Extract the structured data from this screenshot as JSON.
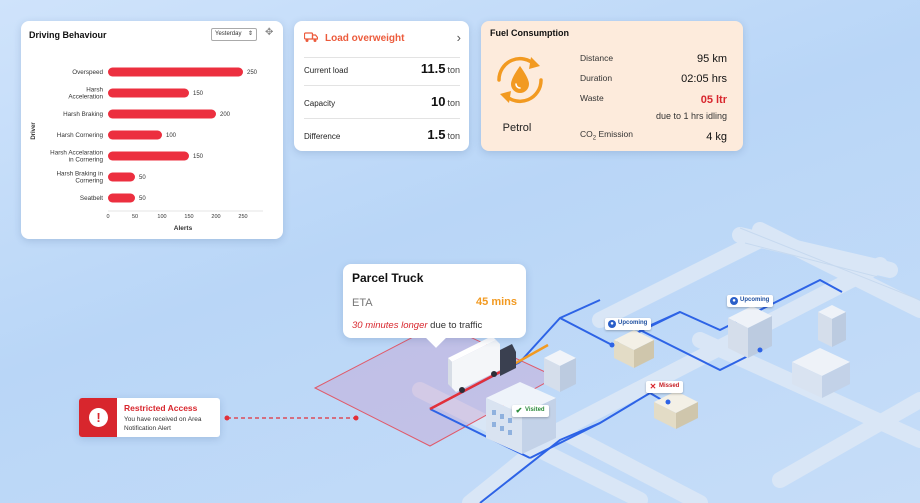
{
  "driving_behaviour": {
    "title": "Driving Behaviour",
    "period": "Yesterday",
    "chart_data": {
      "type": "bar",
      "orientation": "horizontal",
      "title": "Driving Behaviour",
      "xlabel": "Alerts",
      "ylabel": "Driver",
      "categories": [
        "Overspeed",
        "Harsh Acceleration",
        "Harsh Braking",
        "Harsh Cornering",
        "Harsh Accelaration in Cornering",
        "Harsh Braking in Cornering",
        "Seatbelt"
      ],
      "category_lines": [
        [
          "Overspeed"
        ],
        [
          "Harsh",
          "Acceleration"
        ],
        [
          "Harsh Braking"
        ],
        [
          "Harsh Cornering"
        ],
        [
          "Harsh Accelaration",
          "in Cornering"
        ],
        [
          "Harsh Braking in",
          "Cornering"
        ],
        [
          "Seatbelt"
        ]
      ],
      "values": [
        250,
        150,
        200,
        100,
        150,
        50,
        50
      ],
      "xlim": [
        0,
        250
      ],
      "xticks": [
        0,
        50,
        100,
        150,
        200,
        250
      ],
      "bar_color": "#ec2f3f",
      "grid": false
    }
  },
  "load": {
    "title": "Load overweight",
    "accent": "#ec5b3c",
    "rows": [
      {
        "label": "Current load",
        "value": "11.5",
        "unit": "ton"
      },
      {
        "label": "Capacity",
        "value": "10",
        "unit": "ton"
      },
      {
        "label": "Difference",
        "value": "1.5",
        "unit": "ton"
      }
    ]
  },
  "fuel": {
    "title": "Fuel Consumption",
    "fuel_type": "Petrol",
    "distance_label": "Distance",
    "distance_value": "95 km",
    "duration_label": "Duration",
    "duration_value": "02:05 hrs",
    "waste_label": "Waste",
    "waste_value": "05 ltr",
    "waste_note": "due to 1 hrs idling",
    "co2_label_pre": "CO",
    "co2_label_sub": "2",
    "co2_label_post": " Emission",
    "co2_value": "4 kg",
    "accent": "#f29a21"
  },
  "parcel": {
    "title": "Parcel Truck",
    "eta_label": "ETA",
    "eta_value": "45 mins",
    "delay_highlight": "30 minutes longer",
    "delay_rest": " due to traffic"
  },
  "restricted": {
    "title": "Restricted Access",
    "message": "You have received on Area Notification Alert"
  },
  "map_tags": {
    "upcoming_1": "Upcoming",
    "upcoming_2": "Upcoming",
    "missed": "Missed",
    "visited": "Visited"
  }
}
